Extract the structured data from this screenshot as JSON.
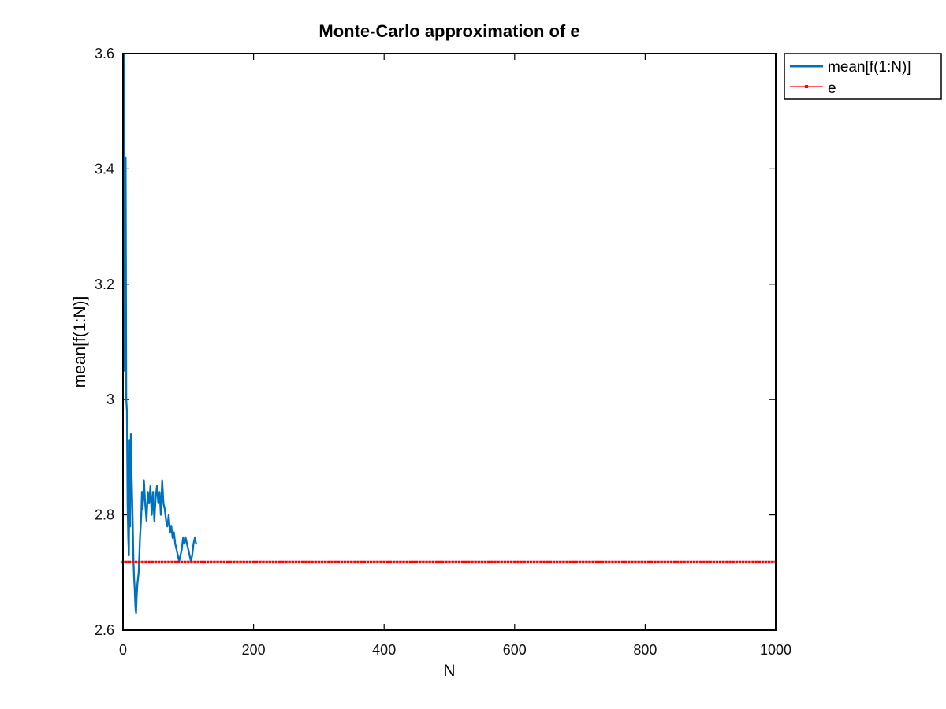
{
  "chart_data": {
    "type": "line",
    "title": "Monte-Carlo approximation of e",
    "xlabel": "N",
    "ylabel": "mean[f(1:N)]",
    "xlim": [
      0,
      1000
    ],
    "ylim": [
      2.6,
      3.6
    ],
    "xticks": [
      "0",
      "200",
      "400",
      "600",
      "800",
      "1000"
    ],
    "yticks": [
      "2.6",
      "2.8",
      "3",
      "3.2",
      "3.4",
      "3.6"
    ],
    "grid": false,
    "legend_position": "outside-top-right",
    "series": [
      {
        "name": "mean[f(1:N)]",
        "style": "solid",
        "color": "#0072BD",
        "x": [
          1,
          2,
          3,
          4,
          5,
          6,
          7,
          8,
          9,
          10,
          11,
          12,
          13,
          14,
          15,
          16,
          17,
          18,
          19,
          20,
          21,
          22,
          23,
          24,
          25,
          26,
          27,
          28,
          29,
          30,
          31,
          32,
          34,
          36,
          38,
          40,
          42,
          44,
          46,
          48,
          50,
          52,
          54,
          56,
          58,
          60,
          62,
          64,
          66,
          68,
          70,
          72,
          74,
          76,
          78,
          80,
          82,
          84,
          86,
          88,
          90,
          92,
          94,
          96,
          98,
          100,
          102,
          104,
          106,
          108,
          110,
          112
        ],
        "y": [
          3.6,
          3.05,
          3.3,
          3.42,
          3.0,
          2.98,
          2.82,
          2.76,
          2.73,
          2.93,
          2.78,
          2.94,
          2.88,
          2.83,
          2.78,
          2.72,
          2.69,
          2.67,
          2.64,
          2.63,
          2.66,
          2.68,
          2.69,
          2.7,
          2.73,
          2.76,
          2.78,
          2.8,
          2.84,
          2.81,
          2.83,
          2.86,
          2.82,
          2.79,
          2.84,
          2.82,
          2.85,
          2.8,
          2.84,
          2.79,
          2.83,
          2.85,
          2.82,
          2.84,
          2.8,
          2.86,
          2.82,
          2.81,
          2.79,
          2.78,
          2.8,
          2.77,
          2.78,
          2.76,
          2.77,
          2.75,
          2.74,
          2.73,
          2.72,
          2.73,
          2.74,
          2.76,
          2.75,
          2.76,
          2.75,
          2.74,
          2.73,
          2.72,
          2.73,
          2.75,
          2.76,
          2.75
        ]
      },
      {
        "name": "e",
        "style": "dotted-markers",
        "color": "#FF0000",
        "x": [
          0,
          1000
        ],
        "y": [
          2.71828,
          2.71828
        ]
      }
    ]
  }
}
